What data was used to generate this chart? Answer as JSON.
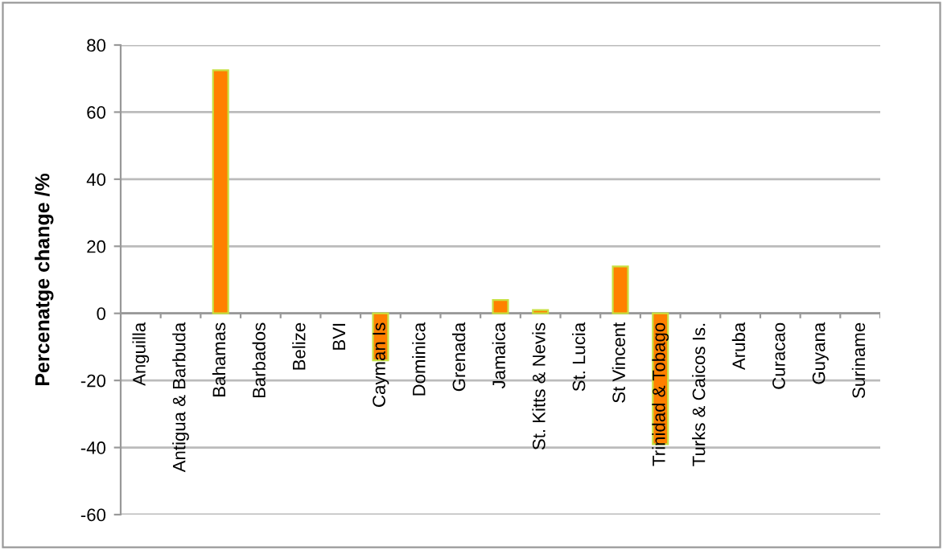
{
  "chart_data": {
    "type": "bar",
    "ylabel": "Percenatge change /%",
    "categories": [
      "Anguilla",
      "Antigua & Barbuda",
      "Bahamas",
      "Barbados",
      "Belize",
      "BVI",
      "Cayman Is",
      "Dominica",
      "Grenada",
      "Jamaica",
      "St. Kitts & Nevis",
      "St. Lucia",
      "St Vincent",
      "Trinidad & Tobago",
      "Turks & Caicos Is.",
      "Aruba",
      "Curacao",
      "Guyana",
      "Suriname"
    ],
    "values": [
      0,
      0,
      72.5,
      0,
      0,
      0,
      -14,
      0,
      0,
      4,
      1,
      0,
      14,
      -39,
      0,
      0,
      0,
      0,
      0
    ],
    "color": "#ff8000",
    "ylim": [
      -60,
      80
    ],
    "yticks": [
      -60,
      -40,
      -20,
      0,
      20,
      40,
      60,
      80
    ],
    "grid": "y"
  }
}
